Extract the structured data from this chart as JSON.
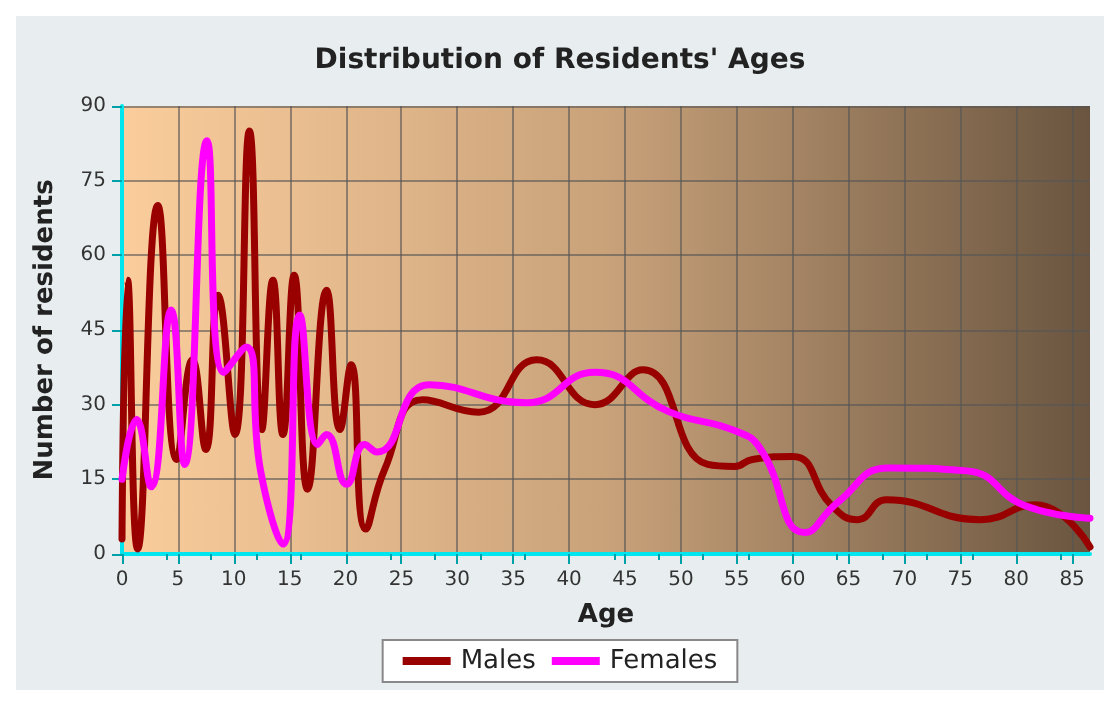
{
  "chart_data": {
    "type": "line",
    "title": "Distribution of Residents' Ages",
    "xlabel": "Age",
    "ylabel": "Number of residents",
    "xlim": [
      0,
      86.6
    ],
    "ylim": [
      0,
      90
    ],
    "xticks": [
      0,
      5,
      10,
      15,
      20,
      25,
      30,
      35,
      40,
      45,
      50,
      55,
      60,
      65,
      70,
      75,
      80,
      85
    ],
    "yticks": [
      0,
      15,
      30,
      45,
      60,
      75,
      90
    ],
    "grid": true,
    "legend": "bottom",
    "marker": "none",
    "line_style": "solid",
    "series": [
      {
        "name": "Males",
        "color": "#990000",
        "x": [
          0,
          0.5,
          1.4,
          3.2,
          4.9,
          6.3,
          7.5,
          8.6,
          10.1,
          11.4,
          12.5,
          13.5,
          14.4,
          15.4,
          16.6,
          18.3,
          19.5,
          20.5,
          21.8,
          23.5,
          26.9,
          31.9,
          37.1,
          42.3,
          46.6,
          52.4,
          54.8,
          56.4,
          60,
          63.5,
          65.8,
          68.4,
          76.8,
          81.7,
          86.6
        ],
        "values": [
          3,
          55,
          1,
          70,
          19,
          39,
          21,
          52,
          24,
          85,
          25,
          55,
          24,
          56,
          13,
          53,
          25,
          38,
          5,
          17,
          31,
          28.5,
          39,
          30,
          37,
          18,
          17.6,
          19,
          19.6,
          9.7,
          6.9,
          10.9,
          6.9,
          9.9,
          1.4
        ]
      },
      {
        "name": "Females",
        "color": "#ff00ff",
        "x": [
          0,
          1.3,
          2.6,
          4.4,
          5.6,
          7.6,
          9.1,
          11.1,
          12.4,
          14.4,
          15.9,
          17.5,
          18.3,
          20.1,
          21.7,
          22.8,
          27.5,
          36.2,
          42.3,
          48.9,
          54.8,
          57.1,
          61.1,
          64,
          68.6,
          75.6,
          80.8,
          86.6
        ],
        "values": [
          15,
          27,
          13.5,
          49,
          18,
          83,
          36.5,
          41.6,
          16.7,
          2,
          48,
          22,
          24,
          14,
          22,
          20.5,
          34,
          30.4,
          36.5,
          28.6,
          24.8,
          21.2,
          4.3,
          10.3,
          17.3,
          16.7,
          9.7,
          7.2
        ]
      }
    ]
  }
}
